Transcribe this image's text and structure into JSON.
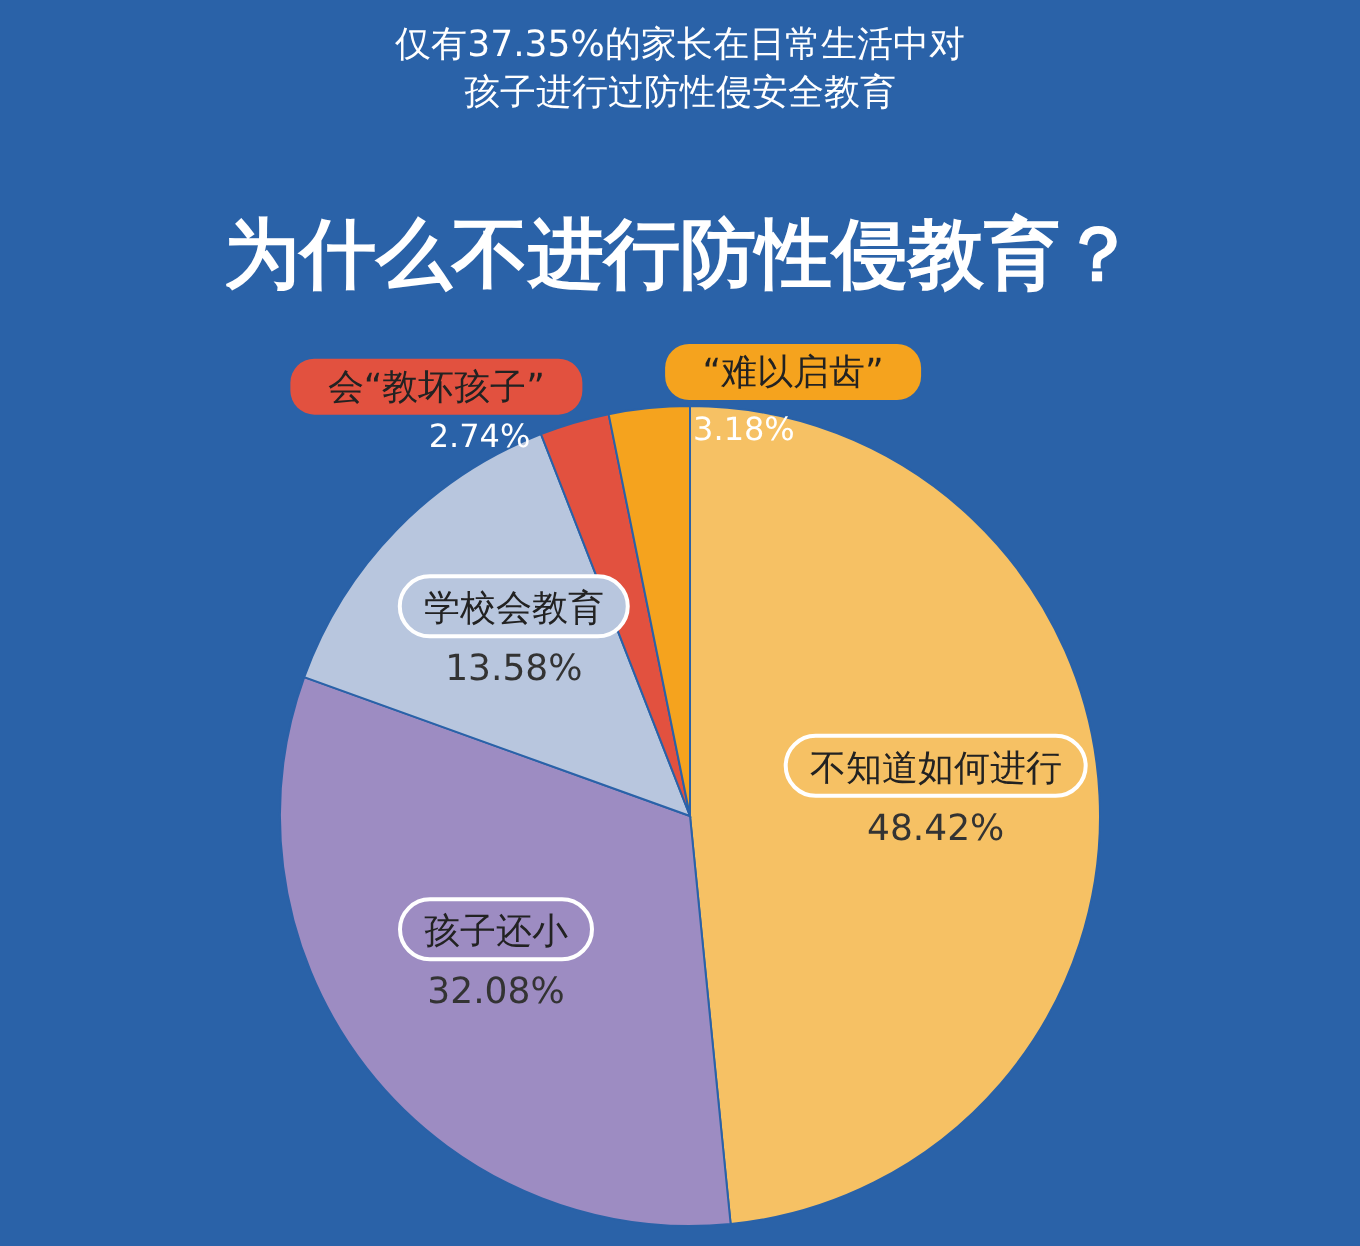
{
  "chart_data": {
    "type": "pie",
    "title": "为什么不进行防性侵教育？",
    "subtitle": "仅有37.35%的家长在日常生活中对孩子进行过防性侵安全教育",
    "categories": [
      "不知道如何进行",
      "孩子还小",
      "学校会教育",
      "会“教坏孩子”",
      "“难以启齿”"
    ],
    "values": [
      48.42,
      32.08,
      13.58,
      2.74,
      3.18
    ],
    "value_labels": [
      "48.42%",
      "32.08%",
      "13.58%",
      "2.74%",
      "3.18%"
    ],
    "colors": [
      "#f6c164",
      "#9d8cc2",
      "#b8c6de",
      "#e2513f",
      "#f5a31e"
    ]
  }
}
